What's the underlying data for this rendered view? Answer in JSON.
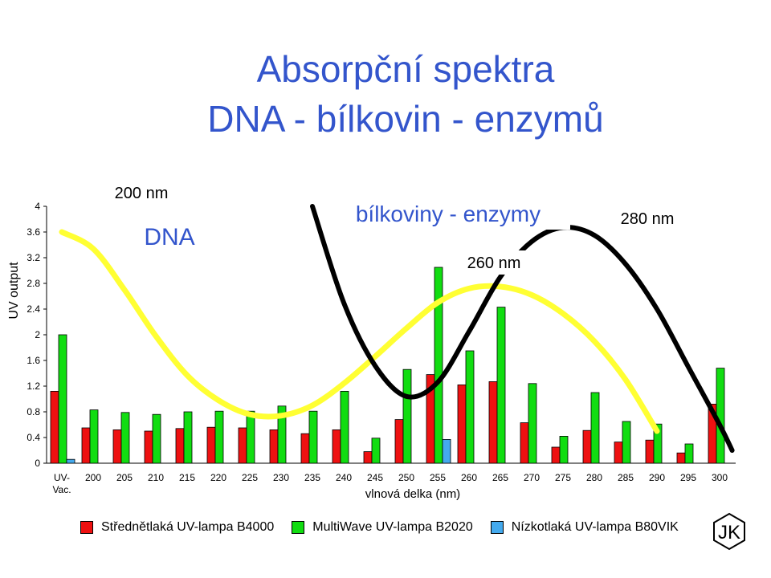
{
  "title_line1": "Absorpční spektra",
  "title_line2": "DNA - bílkovin - enzymů",
  "logo_text": "JK",
  "annotations": {
    "nm200": "200 nm",
    "dna": "DNA",
    "proteins": "bílkoviny - enzymy",
    "nm260": "260 nm",
    "nm280": "280 nm"
  },
  "colors": {
    "title": "#3355cc",
    "red": "#ee1111",
    "green": "#11dd11",
    "blue": "#44aaee",
    "dna_curve": "#ffff33",
    "protein_curve": "#000000",
    "annotation_text": "#3355cc"
  },
  "chart_data": {
    "type": "bar",
    "ylabel": "UV output",
    "xlabel": "vlnová delka (nm)",
    "ylim": [
      0,
      4
    ],
    "yticks": [
      "0",
      "0.4",
      "0.8",
      "1.2",
      "1.6",
      "2",
      "2.4",
      "2.8",
      "3.2",
      "3.6",
      "4"
    ],
    "categories": [
      "UV-\nVac.",
      "200",
      "205",
      "210",
      "215",
      "220",
      "225",
      "230",
      "235",
      "240",
      "245",
      "250",
      "255",
      "260",
      "265",
      "270",
      "275",
      "280",
      "285",
      "290",
      "295",
      "300"
    ],
    "series": [
      {
        "name": "Střednětlaká UV-lampa B4000",
        "color": "red",
        "values": [
          1.12,
          0.55,
          0.52,
          0.5,
          0.54,
          0.56,
          0.55,
          0.52,
          0.46,
          0.52,
          0.18,
          0.68,
          1.38,
          1.22,
          1.27,
          0.63,
          0.25,
          0.51,
          0.33,
          0.36,
          0.16,
          0.92
        ]
      },
      {
        "name": "MultiWave UV-lampa B2020",
        "color": "green",
        "values": [
          2.0,
          0.83,
          0.79,
          0.76,
          0.8,
          0.81,
          0.81,
          0.89,
          0.81,
          1.12,
          0.39,
          1.46,
          3.05,
          1.75,
          2.43,
          1.24,
          0.42,
          1.1,
          0.65,
          0.61,
          0.3,
          1.48
        ]
      },
      {
        "name": "Nízkotlaká UV-lampa B80VIK",
        "color": "blue",
        "values": [
          0.06,
          0,
          0,
          0,
          0,
          0,
          0,
          0,
          0,
          0,
          0,
          0,
          0.37,
          0,
          0,
          0,
          0,
          0,
          0,
          0,
          0,
          0
        ]
      }
    ],
    "dna_curve_values": [
      3.6,
      3.34,
      2.7,
      1.98,
      1.37,
      0.98,
      0.76,
      0.74,
      0.9,
      1.24,
      1.66,
      2.1,
      2.5,
      2.72,
      2.75,
      2.62,
      2.33,
      1.9,
      1.3,
      0.5
    ],
    "dna_curve_categories": [
      0,
      1,
      2,
      3,
      4,
      5,
      6,
      7,
      8,
      9,
      10,
      11,
      12,
      13,
      14,
      15,
      16,
      17,
      18,
      19
    ],
    "protein_curve_values": [
      4.0,
      2.5,
      1.52,
      1.04,
      1.26,
      2.05,
      2.9,
      3.45,
      3.67,
      3.55,
      3.1,
      2.4,
      1.5,
      0.6,
      0.2
    ],
    "protein_curve_categories": [
      8.0,
      9.0,
      10.0,
      11.0,
      12.0,
      13.0,
      14.0,
      15.0,
      16.0,
      17.0,
      18.0,
      19.0,
      20.0,
      21.0,
      21.4
    ]
  }
}
